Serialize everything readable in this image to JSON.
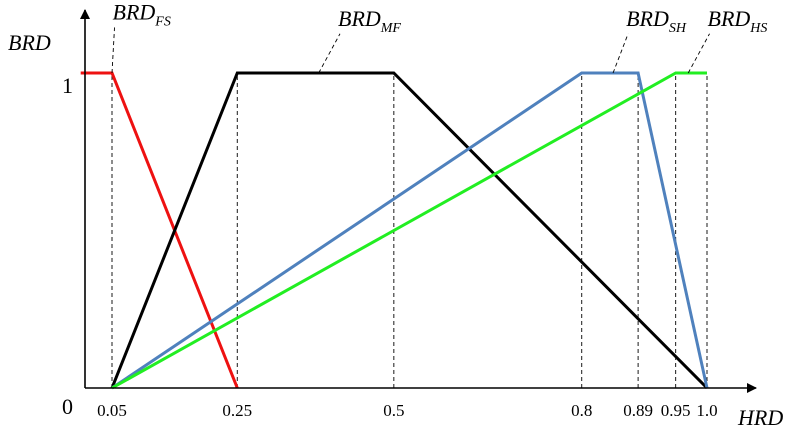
{
  "chart_data": {
    "type": "line",
    "ylabel": "BRD",
    "xlabel": "HRD",
    "xlim": [
      0,
      1.1
    ],
    "ylim": [
      0,
      1.22
    ],
    "y_ticks": [
      {
        "value": 0,
        "label": "0"
      },
      {
        "value": 1,
        "label": "1"
      }
    ],
    "x_ticks": [
      {
        "value": 0.05,
        "label": "0.05"
      },
      {
        "value": 0.25,
        "label": "0.25"
      },
      {
        "value": 0.5,
        "label": "0.5"
      },
      {
        "value": 0.8,
        "label": "0.8"
      },
      {
        "value": 0.89,
        "label": "0.89"
      },
      {
        "value": 0.95,
        "label": "0.95"
      },
      {
        "value": 1.0,
        "label": "1.0"
      }
    ],
    "guide_lines_x": [
      0.05,
      0.25,
      0.5,
      0.8,
      0.89,
      0.95,
      1.0
    ],
    "series": [
      {
        "name": "BRD_FS",
        "label_main": "BRD",
        "label_sub": "FS",
        "color": "#ee1111",
        "points": [
          [
            0,
            1
          ],
          [
            0.05,
            1
          ],
          [
            0.25,
            0
          ]
        ],
        "label_anchor": [
          0.05,
          1
        ],
        "label_pos": [
          0.07,
          1.17
        ]
      },
      {
        "name": "BRD_MF",
        "label_main": "BRD",
        "label_sub": "MF",
        "color": "#000000",
        "points": [
          [
            0.05,
            0
          ],
          [
            0.25,
            1
          ],
          [
            0.5,
            1
          ],
          [
            1.0,
            0
          ]
        ],
        "label_anchor": [
          0.38,
          1
        ],
        "label_pos": [
          0.43,
          1.15
        ]
      },
      {
        "name": "BRD_SH",
        "label_main": "BRD",
        "label_sub": "SH",
        "color": "#4f81bd",
        "points": [
          [
            0.05,
            0
          ],
          [
            0.8,
            1
          ],
          [
            0.89,
            1
          ],
          [
            1.0,
            0
          ]
        ],
        "label_anchor": [
          0.85,
          1
        ],
        "label_pos": [
          0.89,
          1.15
        ]
      },
      {
        "name": "BRD_HS",
        "label_main": "BRD",
        "label_sub": "HS",
        "color": "#22ee22",
        "points": [
          [
            0.05,
            0
          ],
          [
            0.95,
            1
          ],
          [
            1.0,
            1
          ]
        ],
        "label_anchor": [
          0.97,
          1
        ],
        "label_pos": [
          1.02,
          1.15
        ]
      }
    ]
  }
}
